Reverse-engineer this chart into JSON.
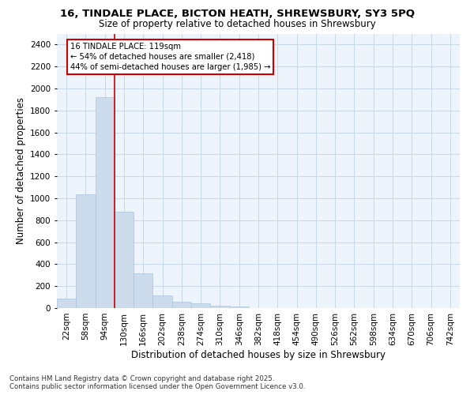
{
  "title_line1": "16, TINDALE PLACE, BICTON HEATH, SHREWSBURY, SY3 5PQ",
  "title_line2": "Size of property relative to detached houses in Shrewsbury",
  "xlabel": "Distribution of detached houses by size in Shrewsbury",
  "ylabel": "Number of detached properties",
  "bar_labels": [
    "22sqm",
    "58sqm",
    "94sqm",
    "130sqm",
    "166sqm",
    "202sqm",
    "238sqm",
    "274sqm",
    "310sqm",
    "346sqm",
    "382sqm",
    "418sqm",
    "454sqm",
    "490sqm",
    "526sqm",
    "562sqm",
    "598sqm",
    "634sqm",
    "670sqm",
    "706sqm",
    "742sqm"
  ],
  "bar_values": [
    85,
    1035,
    1920,
    880,
    315,
    115,
    55,
    45,
    22,
    12,
    0,
    0,
    0,
    0,
    0,
    0,
    0,
    0,
    0,
    0,
    0
  ],
  "bar_color": "#ccdcec",
  "bar_edgecolor": "#aac4dc",
  "bar_linewidth": 0.5,
  "vline_x": 2.5,
  "vline_color": "#cc0000",
  "vline_linewidth": 1.2,
  "annotation_text": "16 TINDALE PLACE: 119sqm\n← 54% of detached houses are smaller (2,418)\n44% of semi-detached houses are larger (1,985) →",
  "annotation_box_color": "#cc0000",
  "annotation_bg": "#ffffff",
  "ylim": [
    0,
    2500
  ],
  "yticks": [
    0,
    200,
    400,
    600,
    800,
    1000,
    1200,
    1400,
    1600,
    1800,
    2000,
    2200,
    2400
  ],
  "footnote": "Contains HM Land Registry data © Crown copyright and database right 2025.\nContains public sector information licensed under the Open Government Licence v3.0.",
  "grid_color": "#c8d8e8",
  "bg_color": "#ffffff",
  "plot_bg": "#eef4fb"
}
